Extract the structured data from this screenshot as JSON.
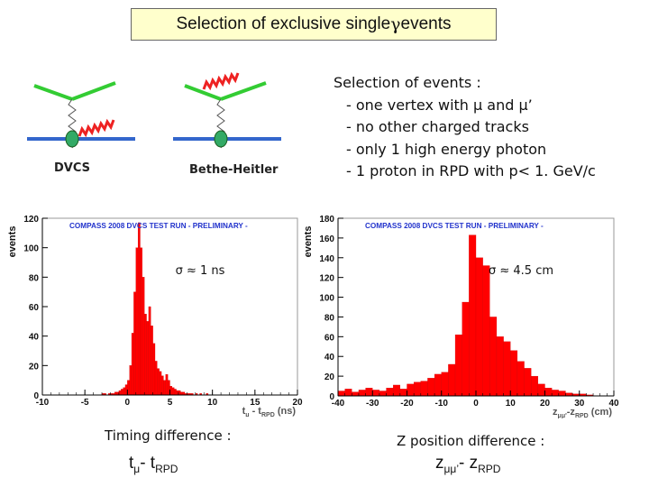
{
  "title": {
    "prefix": "Selection of exclusive single ",
    "gamma": "γ",
    "suffix": " events"
  },
  "diagrams": {
    "dvcs_label": "DVCS",
    "bh_label": "Bethe-Heitler"
  },
  "selection": {
    "heading": "Selection  of events :",
    "items": [
      "- one vertex with μ and μ’",
      "- no other charged tracks",
      "- only 1 high energy photon",
      "- 1 proton in RPD with p< 1. GeV/c"
    ]
  },
  "colors": {
    "lepton": "#33cc33",
    "proton_line": "#3366cc",
    "proton": "#33aa66",
    "photon": "#ee2222",
    "bars": "#ff0000",
    "banner": "#2233cc"
  },
  "chart_data": [
    {
      "type": "bar",
      "banner": "COMPASS 2008 DVCS TEST RUN  - PRELIMINARY -",
      "ylabel": "events",
      "xlabel": {
        "main": "t",
        "sub1": "μ",
        "mid": " - t",
        "sub2": "RPD",
        "unit": " (ns)"
      },
      "xlim": [
        -10,
        20
      ],
      "ylim": [
        0,
        120
      ],
      "xticks": [
        -10,
        -5,
        0,
        5,
        10,
        15,
        20
      ],
      "yticks": [
        0,
        20,
        40,
        60,
        80,
        100,
        120
      ],
      "annotation": "σ ≈ 1 ns",
      "bin_start": -3.0,
      "bin_width": 0.25,
      "values": [
        1,
        1,
        0,
        1,
        1,
        1,
        2,
        2,
        3,
        4,
        5,
        7,
        10,
        20,
        42,
        70,
        100,
        117,
        100,
        80,
        55,
        50,
        60,
        47,
        35,
        23,
        18,
        16,
        13,
        10,
        14,
        10,
        6,
        5,
        4,
        3,
        3,
        2,
        2,
        1,
        1,
        1,
        1,
        0,
        1,
        0,
        1,
        0,
        0,
        1
      ]
    },
    {
      "type": "bar",
      "banner": "COMPASS 2008 DVCS TEST RUN  - PRELIMINARY -",
      "ylabel": "events",
      "xlabel": {
        "main": "z",
        "sub1": "μμ'",
        "mid": "-z",
        "sub2": "RPD",
        "unit": " (cm)"
      },
      "xlim": [
        -40,
        40
      ],
      "ylim": [
        0,
        180
      ],
      "xticks": [
        -40,
        -30,
        -20,
        -10,
        0,
        10,
        20,
        30,
        40
      ],
      "yticks": [
        0,
        20,
        40,
        60,
        80,
        100,
        120,
        140,
        160,
        180
      ],
      "annotation": "σ ≈ 4.5 cm",
      "bin_start": -40,
      "bin_width": 2,
      "values": [
        5,
        7,
        4,
        6,
        8,
        6,
        5,
        8,
        11,
        7,
        12,
        14,
        15,
        18,
        22,
        24,
        32,
        62,
        95,
        163,
        140,
        132,
        80,
        60,
        55,
        46,
        35,
        28,
        20,
        12,
        8,
        6,
        5,
        3,
        2,
        2,
        1,
        0,
        0,
        0
      ]
    }
  ],
  "captions": {
    "left": "Timing difference :",
    "right": "Z position difference :",
    "left_formula": {
      "main": "t",
      "sub1": "μ",
      "mid": "- t",
      "sub2": "RPD"
    },
    "right_formula": {
      "main": "z",
      "sub1": "μμ’",
      "mid": "- z",
      "sub2": "RPD"
    }
  }
}
